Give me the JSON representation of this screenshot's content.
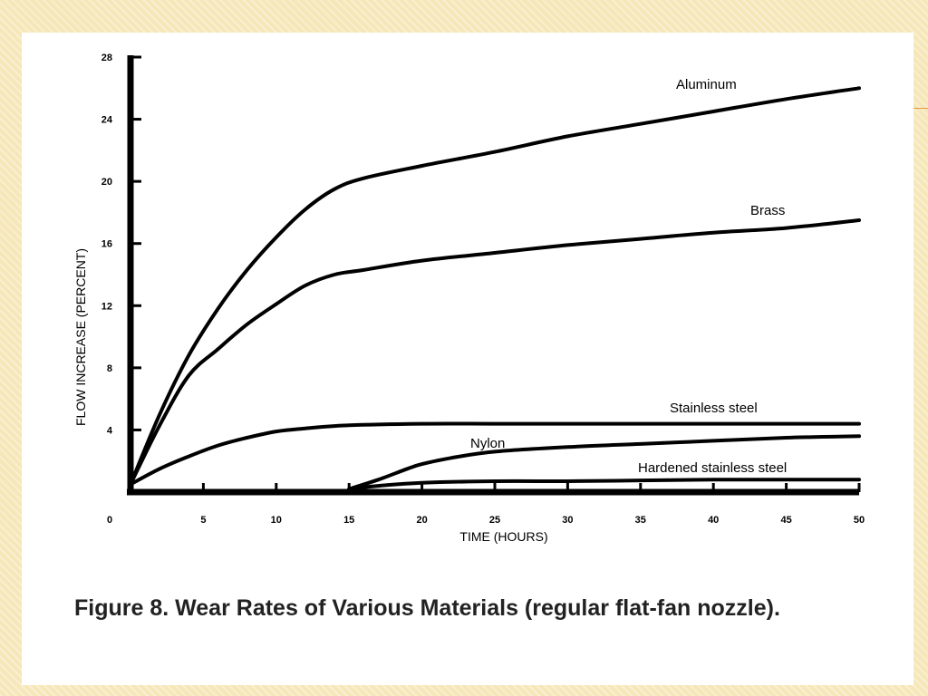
{
  "caption": "Figure 8. Wear Rates of Various Materials (regular flat-fan nozzle).",
  "colors": {
    "background": "#f6e7b8",
    "slide": "#ffffff",
    "ink": "#000000",
    "accent": "#e29a44"
  },
  "chart_data": {
    "type": "line",
    "title": "",
    "xlabel": "TIME (HOURS)",
    "ylabel": "FLOW INCREASE (PERCENT)",
    "xlim": [
      0,
      50
    ],
    "ylim": [
      0,
      28
    ],
    "x_ticks": [
      5,
      10,
      15,
      20,
      25,
      30,
      35,
      40,
      45,
      50
    ],
    "y_ticks": [
      4,
      8,
      12,
      16,
      20,
      24,
      28
    ],
    "origin_label": "0",
    "grid": false,
    "legend": "none",
    "series": [
      {
        "name": "Aluminum",
        "x": [
          0,
          2,
          4,
          6,
          8,
          10,
          12,
          14,
          16,
          20,
          25,
          30,
          35,
          40,
          45,
          50
        ],
        "y": [
          0.5,
          5.0,
          8.8,
          11.8,
          14.3,
          16.4,
          18.2,
          19.5,
          20.2,
          21.0,
          21.9,
          22.9,
          23.7,
          24.5,
          25.3,
          26.0
        ]
      },
      {
        "name": "Brass",
        "x": [
          0,
          2,
          4,
          6,
          8,
          10,
          12,
          14,
          16,
          20,
          25,
          30,
          35,
          40,
          45,
          50
        ],
        "y": [
          0.5,
          4.3,
          7.5,
          9.2,
          10.8,
          12.1,
          13.3,
          14.0,
          14.3,
          14.9,
          15.4,
          15.9,
          16.3,
          16.7,
          17.0,
          17.5
        ]
      },
      {
        "name": "Stainless steel",
        "x": [
          0,
          2,
          4,
          6,
          8,
          10,
          12,
          15,
          20,
          25,
          30,
          35,
          40,
          45,
          50
        ],
        "y": [
          0.5,
          1.5,
          2.3,
          3.0,
          3.5,
          3.9,
          4.1,
          4.3,
          4.4,
          4.4,
          4.4,
          4.4,
          4.4,
          4.4,
          4.4
        ]
      },
      {
        "name": "Nylon",
        "x": [
          15,
          17,
          19,
          20,
          22,
          25,
          30,
          35,
          40,
          45,
          50
        ],
        "y": [
          0.2,
          0.8,
          1.5,
          1.8,
          2.2,
          2.6,
          2.9,
          3.1,
          3.3,
          3.5,
          3.6
        ]
      },
      {
        "name": "Hardened stainless steel",
        "x": [
          15,
          17,
          20,
          25,
          30,
          35,
          40,
          45,
          50
        ],
        "y": [
          0.2,
          0.4,
          0.6,
          0.7,
          0.7,
          0.75,
          0.8,
          0.8,
          0.8
        ]
      }
    ]
  }
}
